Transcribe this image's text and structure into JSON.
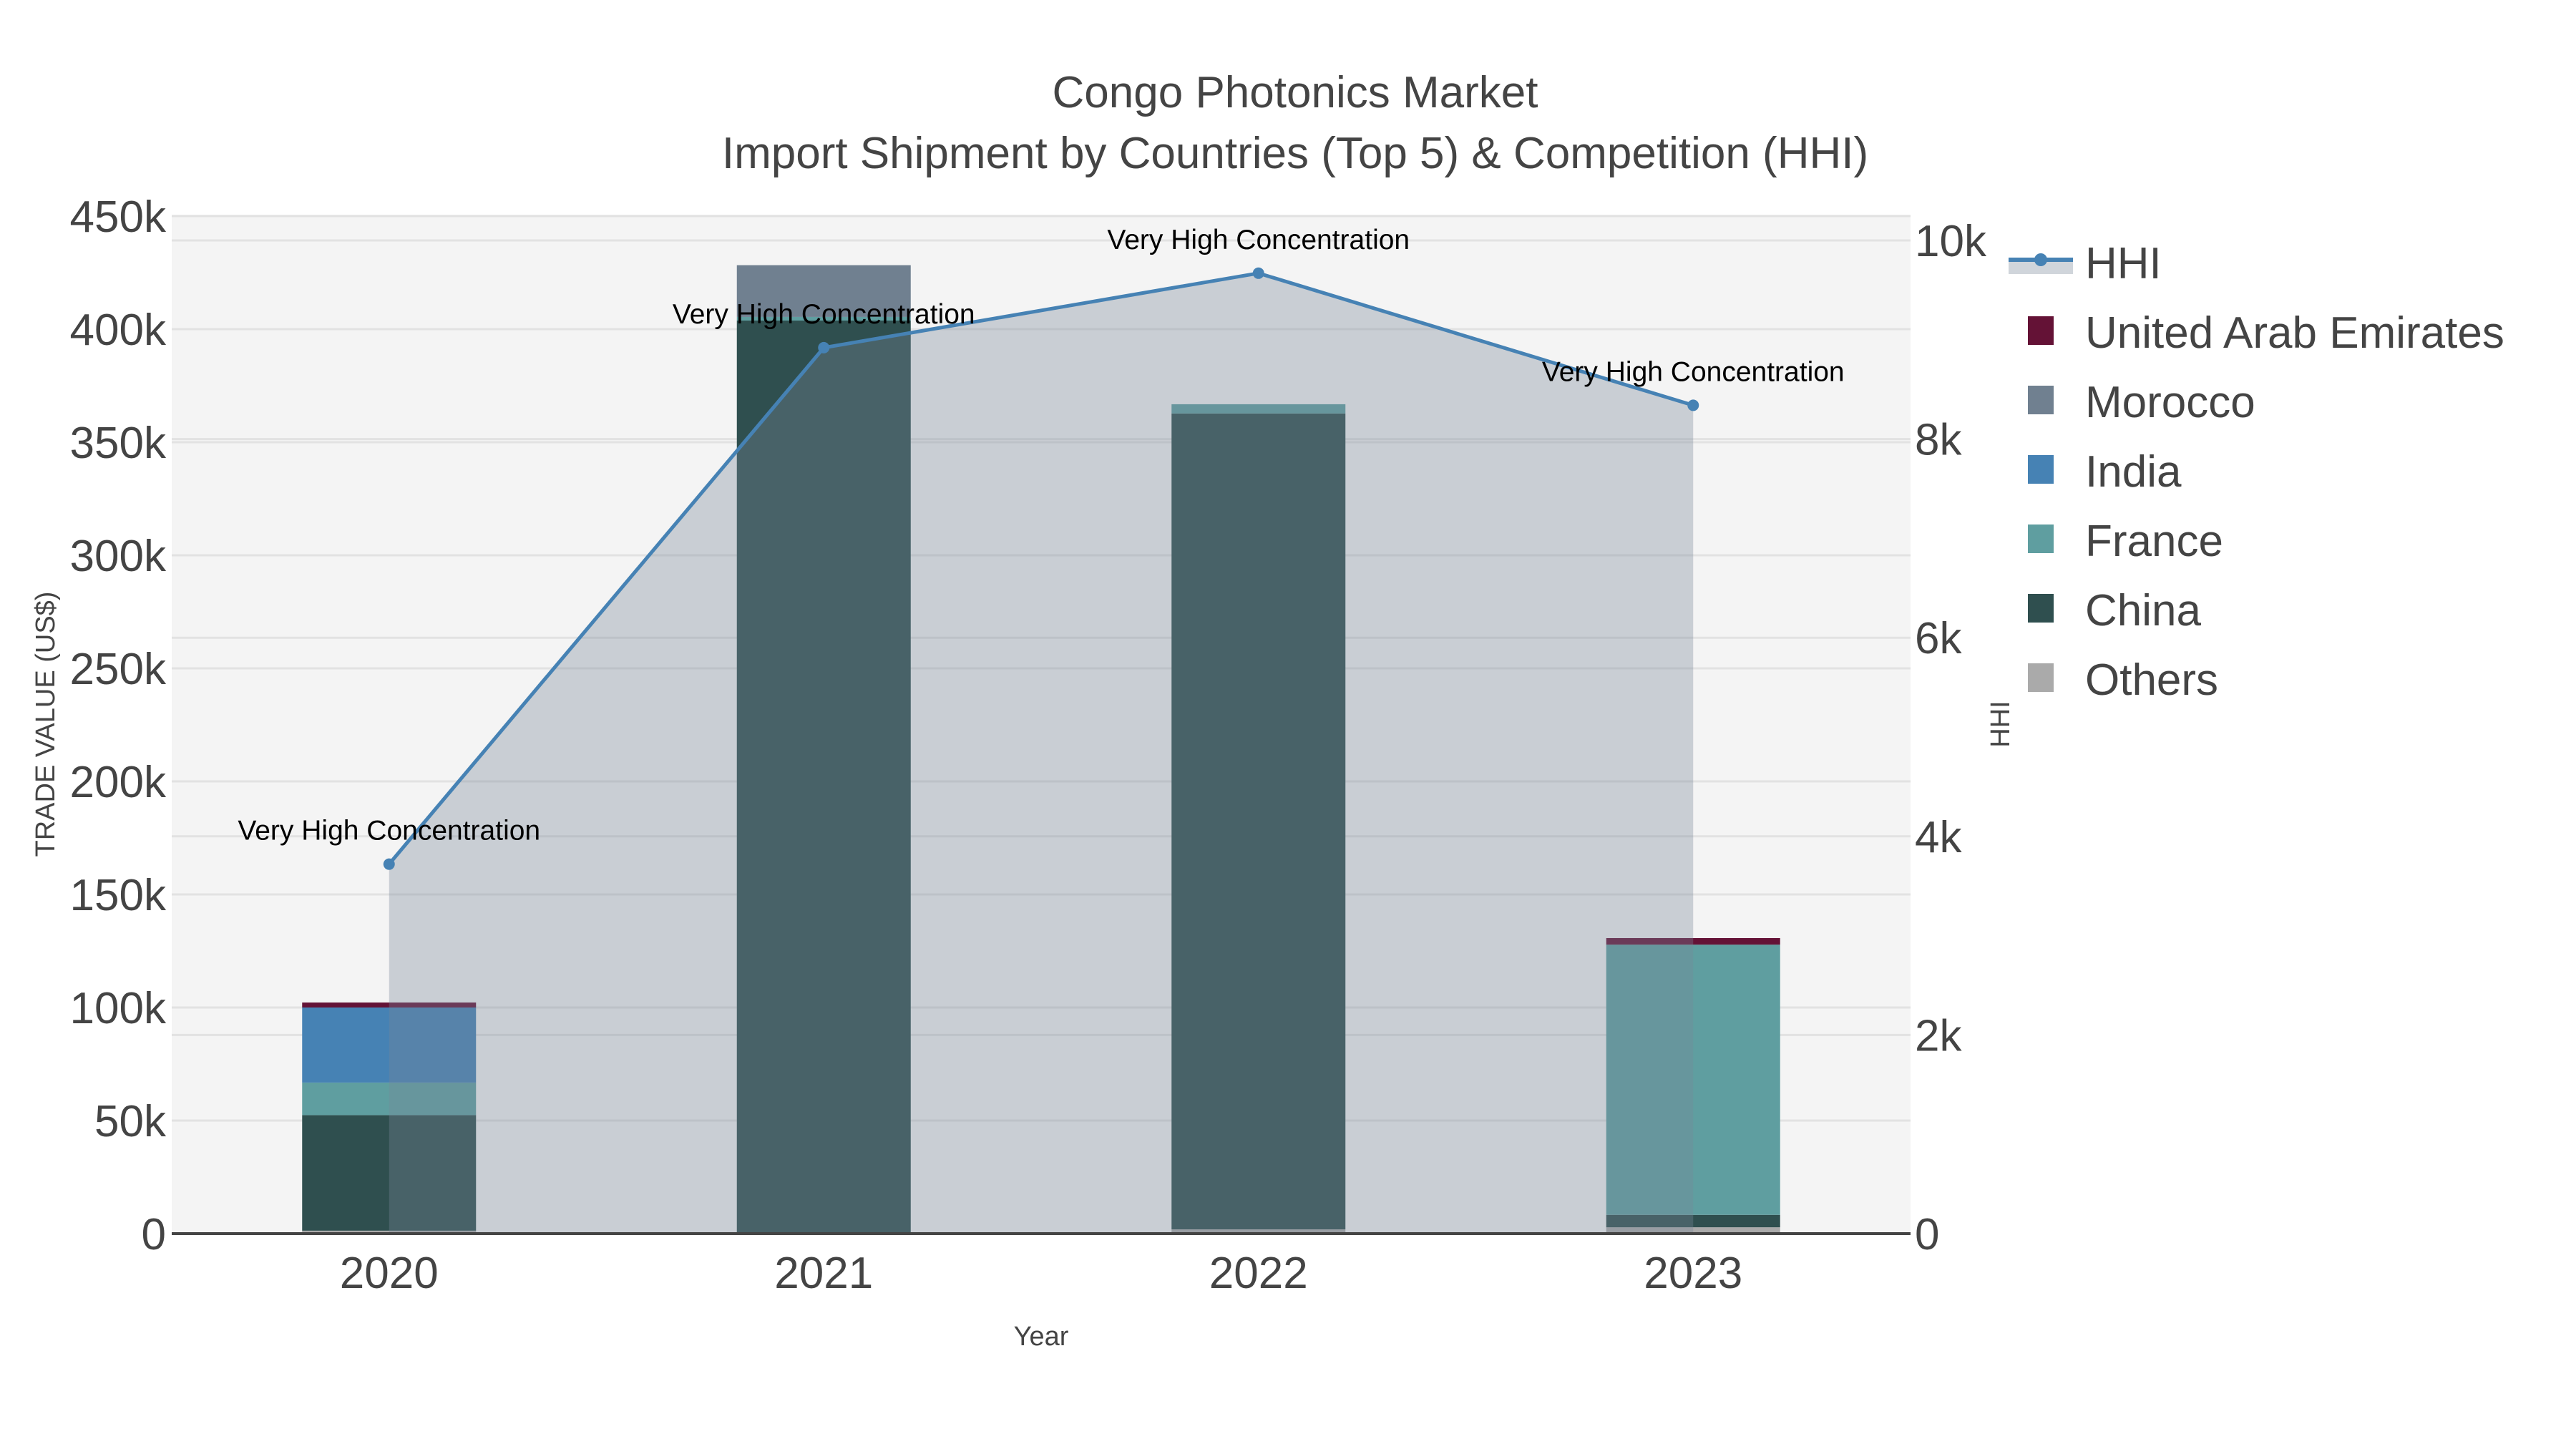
{
  "title": {
    "line1": "Congo Photonics Market",
    "line2": "Import Shipment by Countries (Top 5) & Competition (HHI)"
  },
  "axes": {
    "x_title": "Year",
    "y_left_title": "TRADE VALUE (US$)",
    "y_right_title": "HHI",
    "y_left_ticks": [
      "0",
      "50k",
      "100k",
      "150k",
      "200k",
      "250k",
      "300k",
      "350k",
      "400k",
      "450k"
    ],
    "y_right_ticks": [
      "0",
      "2k",
      "4k",
      "6k",
      "8k",
      "10k"
    ],
    "x_ticks": [
      "2020",
      "2021",
      "2022",
      "2023"
    ]
  },
  "legend": {
    "items": [
      {
        "label": "HHI",
        "type": "line",
        "color": "#4682b4"
      },
      {
        "label": "United Arab Emirates",
        "type": "bar",
        "color": "#641236"
      },
      {
        "label": "Morocco",
        "type": "bar",
        "color": "#708090"
      },
      {
        "label": "India",
        "type": "bar",
        "color": "#4682b4"
      },
      {
        "label": "France",
        "type": "bar",
        "color": "#5f9ea0"
      },
      {
        "label": "China",
        "type": "bar",
        "color": "#2f4f4f"
      },
      {
        "label": "Others",
        "type": "bar",
        "color": "#aaaaaa"
      }
    ]
  },
  "chart_data": {
    "type": "bar",
    "subtype": "stacked bar + line (dual axis)",
    "title": "Congo Photonics Market — Import Shipment by Countries (Top 5) & Competition (HHI)",
    "xlabel": "Year",
    "ylabel": "TRADE VALUE (US$)",
    "y2label": "HHI",
    "ylim": [
      0,
      450000
    ],
    "y2lim": [
      0,
      10260
    ],
    "grid": true,
    "legend_position": "right",
    "categories": [
      "2020",
      "2021",
      "2022",
      "2023"
    ],
    "series": [
      {
        "name": "Others",
        "color": "#aaaaaa",
        "values": [
          1300,
          0,
          1900,
          2800
        ]
      },
      {
        "name": "China",
        "color": "#2f4f4f",
        "values": [
          51100,
          403800,
          360800,
          5500
        ]
      },
      {
        "name": "France",
        "color": "#5f9ea0",
        "values": [
          14400,
          1600,
          4100,
          119500
        ]
      },
      {
        "name": "India",
        "color": "#4682b4",
        "values": [
          33200,
          0,
          0,
          0
        ]
      },
      {
        "name": "Morocco",
        "color": "#708090",
        "values": [
          0,
          22900,
          0,
          0
        ]
      },
      {
        "name": "United Arab Emirates",
        "color": "#641236",
        "values": [
          2200,
          0,
          0,
          2900
        ]
      }
    ],
    "line_series": {
      "name": "HHI",
      "axis": "right",
      "color": "#4682b4",
      "fill": "tozeroy",
      "values": [
        3720,
        8920,
        9670,
        8340
      ],
      "annotations": [
        "Very High Concentration",
        "Very High Concentration",
        "Very High Concentration",
        "Very High Concentration"
      ]
    }
  }
}
